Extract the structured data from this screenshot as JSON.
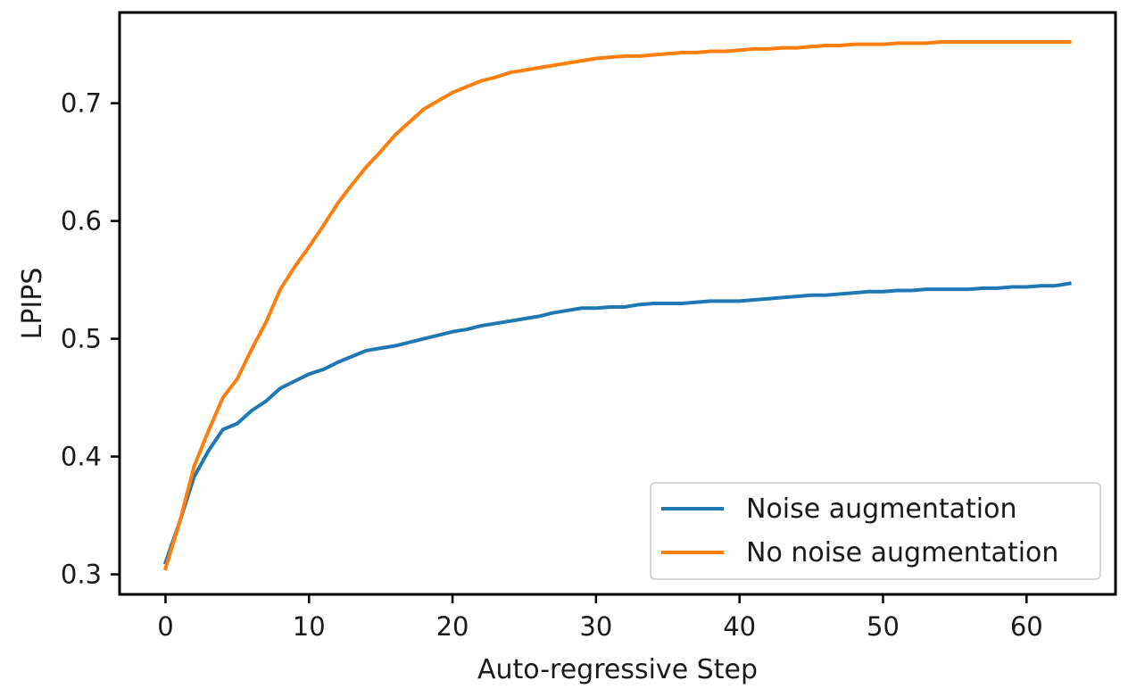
{
  "chart_data": {
    "type": "line",
    "title": "",
    "xlabel": "Auto-regressive Step",
    "ylabel": "LPIPS",
    "xlim": [
      -3.2,
      66.2
    ],
    "ylim": [
      0.283,
      0.777
    ],
    "xticks": [
      0,
      10,
      20,
      30,
      40,
      50,
      60
    ],
    "xtick_labels": [
      "0",
      "10",
      "20",
      "30",
      "40",
      "50",
      "60"
    ],
    "yticks": [
      0.3,
      0.4,
      0.5,
      0.6,
      0.7
    ],
    "ytick_labels": [
      "0.3",
      "0.4",
      "0.5",
      "0.6",
      "0.7"
    ],
    "grid": false,
    "legend_position": "lower-right",
    "x": [
      0,
      1,
      2,
      3,
      4,
      5,
      6,
      7,
      8,
      9,
      10,
      11,
      12,
      13,
      14,
      15,
      16,
      17,
      18,
      19,
      20,
      21,
      22,
      23,
      24,
      25,
      26,
      27,
      28,
      29,
      30,
      31,
      32,
      33,
      34,
      35,
      36,
      37,
      38,
      39,
      40,
      41,
      42,
      43,
      44,
      45,
      46,
      47,
      48,
      49,
      50,
      51,
      52,
      53,
      54,
      55,
      56,
      57,
      58,
      59,
      60,
      61,
      62,
      63
    ],
    "series": [
      {
        "name": "Noise augmentation",
        "color": "#1f77b4",
        "values": [
          0.31,
          0.345,
          0.383,
          0.405,
          0.423,
          0.428,
          0.439,
          0.447,
          0.458,
          0.464,
          0.47,
          0.474,
          0.48,
          0.485,
          0.49,
          0.492,
          0.494,
          0.497,
          0.5,
          0.503,
          0.506,
          0.508,
          0.511,
          0.513,
          0.515,
          0.517,
          0.519,
          0.522,
          0.524,
          0.526,
          0.526,
          0.527,
          0.527,
          0.529,
          0.53,
          0.53,
          0.53,
          0.531,
          0.532,
          0.532,
          0.532,
          0.533,
          0.534,
          0.535,
          0.536,
          0.537,
          0.537,
          0.538,
          0.539,
          0.54,
          0.54,
          0.541,
          0.541,
          0.542,
          0.542,
          0.542,
          0.542,
          0.543,
          0.543,
          0.544,
          0.544,
          0.545,
          0.545,
          0.547
        ]
      },
      {
        "name": "No noise augmentation",
        "color": "#ff7f0e",
        "values": [
          0.305,
          0.345,
          0.392,
          0.422,
          0.45,
          0.466,
          0.491,
          0.514,
          0.542,
          0.561,
          0.578,
          0.596,
          0.615,
          0.631,
          0.646,
          0.659,
          0.673,
          0.684,
          0.695,
          0.702,
          0.709,
          0.714,
          0.719,
          0.722,
          0.726,
          0.728,
          0.73,
          0.732,
          0.734,
          0.736,
          0.738,
          0.739,
          0.74,
          0.74,
          0.741,
          0.742,
          0.743,
          0.743,
          0.744,
          0.744,
          0.745,
          0.746,
          0.746,
          0.747,
          0.747,
          0.748,
          0.749,
          0.749,
          0.75,
          0.75,
          0.75,
          0.751,
          0.751,
          0.751,
          0.752,
          0.752,
          0.752,
          0.752,
          0.752,
          0.752,
          0.752,
          0.752,
          0.752,
          0.752
        ]
      }
    ]
  }
}
